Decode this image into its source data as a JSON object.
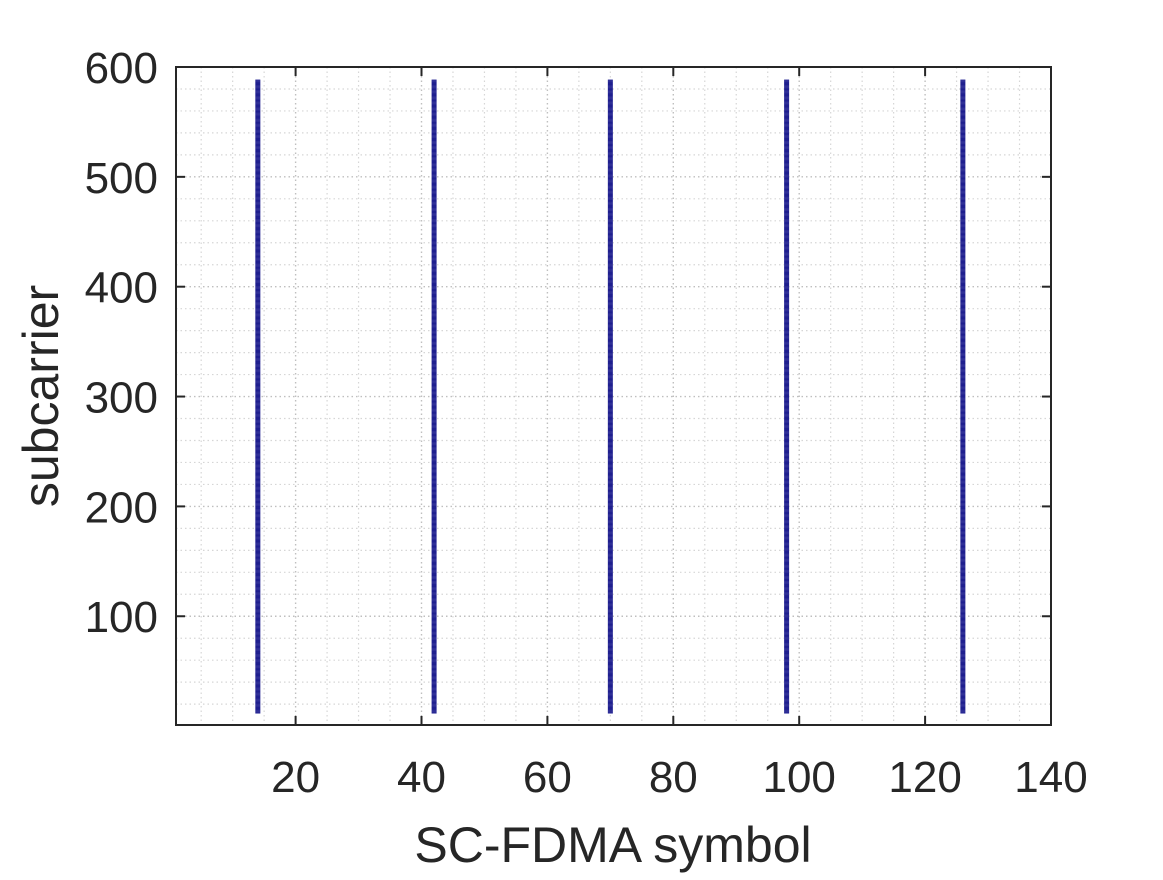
{
  "chart_data": {
    "type": "scatter",
    "title": "",
    "xlabel": "SC-FDMA symbol",
    "ylabel": "subcarrier",
    "xlim": [
      1,
      140
    ],
    "ylim": [
      1,
      600
    ],
    "xticks": [
      20,
      40,
      60,
      80,
      100,
      120,
      140
    ],
    "yticks": [
      100,
      200,
      300,
      400,
      500,
      600
    ],
    "xtick_labels": [
      "20",
      "40",
      "60",
      "80",
      "100",
      "120",
      "140"
    ],
    "ytick_labels": [
      "100",
      "200",
      "300",
      "400",
      "500",
      "600"
    ],
    "grid": true,
    "minor_grid": true,
    "marker": "dot",
    "series": [
      {
        "x": [
          14,
          42,
          70,
          98,
          126
        ],
        "y_range": [
          12,
          588
        ],
        "y_step": 1,
        "color": "#1f1f8f"
      }
    ]
  }
}
